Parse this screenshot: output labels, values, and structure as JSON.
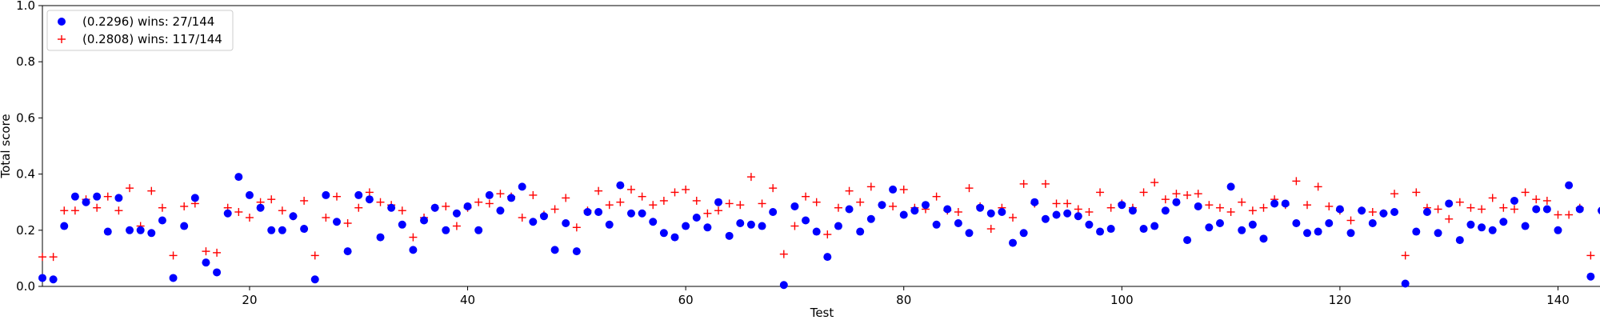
{
  "chart_data": {
    "type": "scatter",
    "xlabel": "Test",
    "ylabel": "Total score",
    "xlim": [
      1,
      144
    ],
    "ylim": [
      0.0,
      1.0
    ],
    "x_ticks": [
      20,
      40,
      60,
      80,
      100,
      120,
      140
    ],
    "x_tick_labels": [
      "20",
      "40",
      "60",
      "80",
      "100",
      "120",
      "140"
    ],
    "y_ticks": [
      0.0,
      0.2,
      0.4,
      0.6,
      0.8,
      1.0
    ],
    "y_tick_labels": [
      "0.0",
      "0.2",
      "0.4",
      "0.6",
      "0.8",
      "1.0"
    ],
    "grid": false,
    "legend_position": "top-left",
    "series": [
      {
        "name": "(0.2296) wins: 27/144",
        "marker": "circle",
        "color": "#0000ff",
        "x": [
          1,
          2,
          3,
          4,
          5,
          6,
          7,
          8,
          9,
          10,
          11,
          12,
          13,
          14,
          15,
          16,
          17,
          18,
          19,
          20,
          21,
          22,
          23,
          24,
          25,
          26,
          27,
          28,
          29,
          30,
          31,
          32,
          33,
          34,
          35,
          36,
          37,
          38,
          39,
          40,
          41,
          42,
          43,
          44,
          45,
          46,
          47,
          48,
          49,
          50,
          51,
          52,
          53,
          54,
          55,
          56,
          57,
          58,
          59,
          60,
          61,
          62,
          63,
          64,
          65,
          66,
          67,
          68,
          69,
          70,
          71,
          72,
          73,
          74,
          75,
          76,
          77,
          78,
          79,
          80,
          81,
          82,
          83,
          84,
          85,
          86,
          87,
          88,
          89,
          90,
          91,
          92,
          93,
          94,
          95,
          96,
          97,
          98,
          99,
          100,
          101,
          102,
          103,
          104,
          105,
          106,
          107,
          108,
          109,
          110,
          111,
          112,
          113,
          114,
          115,
          116,
          117,
          118,
          119,
          120,
          121,
          122,
          123,
          124,
          125,
          126,
          127,
          128,
          129,
          130,
          131,
          132,
          133,
          134,
          135,
          136,
          137,
          138,
          139,
          140,
          141,
          142,
          143,
          144
        ],
        "y": [
          0.03,
          0.025,
          0.215,
          0.32,
          0.3,
          0.32,
          0.195,
          0.315,
          0.2,
          0.2,
          0.19,
          0.235,
          0.03,
          0.215,
          0.315,
          0.085,
          0.05,
          0.26,
          0.39,
          0.325,
          0.28,
          0.2,
          0.2,
          0.25,
          0.205,
          0.025,
          0.325,
          0.23,
          0.125,
          0.325,
          0.31,
          0.175,
          0.28,
          0.22,
          0.13,
          0.235,
          0.28,
          0.2,
          0.26,
          0.285,
          0.2,
          0.325,
          0.27,
          0.315,
          0.355,
          0.23,
          0.25,
          0.13,
          0.225,
          0.125,
          0.265,
          0.265,
          0.22,
          0.36,
          0.26,
          0.26,
          0.23,
          0.19,
          0.175,
          0.215,
          0.245,
          0.21,
          0.3,
          0.18,
          0.225,
          0.22,
          0.215,
          0.265,
          0.005,
          0.285,
          0.235,
          0.195,
          0.105,
          0.215,
          0.275,
          0.195,
          0.24,
          0.29,
          0.345,
          0.255,
          0.27,
          0.29,
          0.22,
          0.275,
          0.225,
          0.19,
          0.28,
          0.26,
          0.265,
          0.155,
          0.19,
          0.3,
          0.24,
          0.255,
          0.26,
          0.25,
          0.22,
          0.195,
          0.205,
          0.29,
          0.27,
          0.205,
          0.215,
          0.27,
          0.3,
          0.165,
          0.285,
          0.21,
          0.225,
          0.355,
          0.2,
          0.22,
          0.17,
          0.295,
          0.295,
          0.225,
          0.19,
          0.195,
          0.225,
          0.275,
          0.19,
          0.27,
          0.225,
          0.26,
          0.265,
          0.01,
          0.195,
          0.265,
          0.19,
          0.295,
          0.165,
          0.22,
          0.21,
          0.2,
          0.23,
          0.305,
          0.215,
          0.275,
          0.275,
          0.2,
          0.36,
          0.275,
          0.035,
          0.27
        ]
      },
      {
        "name": "(0.2808) wins: 117/144",
        "marker": "plus",
        "color": "#ff0000",
        "x": [
          1,
          2,
          3,
          4,
          5,
          6,
          7,
          8,
          9,
          10,
          11,
          12,
          13,
          14,
          15,
          16,
          17,
          18,
          19,
          20,
          21,
          22,
          23,
          24,
          25,
          26,
          27,
          28,
          29,
          30,
          31,
          32,
          33,
          34,
          35,
          36,
          37,
          38,
          39,
          40,
          41,
          42,
          43,
          44,
          45,
          46,
          47,
          48,
          49,
          50,
          51,
          52,
          53,
          54,
          55,
          56,
          57,
          58,
          59,
          60,
          61,
          62,
          63,
          64,
          65,
          66,
          67,
          68,
          69,
          70,
          71,
          72,
          73,
          74,
          75,
          76,
          77,
          78,
          79,
          80,
          81,
          82,
          83,
          84,
          85,
          86,
          87,
          88,
          89,
          90,
          91,
          92,
          93,
          94,
          95,
          96,
          97,
          98,
          99,
          100,
          101,
          102,
          103,
          104,
          105,
          106,
          107,
          108,
          109,
          110,
          111,
          112,
          113,
          114,
          115,
          116,
          117,
          118,
          119,
          120,
          121,
          122,
          123,
          124,
          125,
          126,
          127,
          128,
          129,
          130,
          131,
          132,
          133,
          134,
          135,
          136,
          137,
          138,
          139,
          140,
          141,
          142,
          143,
          144
        ],
        "y": [
          0.105,
          0.105,
          0.27,
          0.27,
          0.31,
          0.28,
          0.32,
          0.27,
          0.35,
          0.215,
          0.34,
          0.28,
          0.11,
          0.285,
          0.295,
          0.125,
          0.12,
          0.28,
          0.265,
          0.245,
          0.3,
          0.31,
          0.27,
          0.25,
          0.305,
          0.11,
          0.245,
          0.32,
          0.225,
          0.28,
          0.335,
          0.3,
          0.29,
          0.27,
          0.175,
          0.245,
          0.28,
          0.285,
          0.215,
          0.28,
          0.3,
          0.295,
          0.33,
          0.32,
          0.245,
          0.325,
          0.255,
          0.275,
          0.315,
          0.21,
          0.27,
          0.34,
          0.29,
          0.3,
          0.345,
          0.32,
          0.29,
          0.305,
          0.335,
          0.345,
          0.305,
          0.26,
          0.27,
          0.295,
          0.29,
          0.39,
          0.295,
          0.35,
          0.115,
          0.215,
          0.32,
          0.3,
          0.185,
          0.28,
          0.34,
          0.3,
          0.355,
          0.29,
          0.285,
          0.345,
          0.28,
          0.275,
          0.32,
          0.27,
          0.265,
          0.35,
          0.285,
          0.205,
          0.28,
          0.245,
          0.365,
          0.295,
          0.365,
          0.295,
          0.295,
          0.275,
          0.265,
          0.335,
          0.28,
          0.295,
          0.28,
          0.335,
          0.37,
          0.31,
          0.33,
          0.325,
          0.33,
          0.29,
          0.28,
          0.265,
          0.3,
          0.27,
          0.28,
          0.31,
          0.29,
          0.375,
          0.29,
          0.355,
          0.285,
          0.27,
          0.235,
          0.27,
          0.265,
          0.26,
          0.33,
          0.11,
          0.335,
          0.28,
          0.275,
          0.24,
          0.3,
          0.28,
          0.275,
          0.315,
          0.28,
          0.275,
          0.335,
          0.31,
          0.305,
          0.255,
          0.255,
          0.28,
          0.11,
          0.27
        ]
      }
    ]
  }
}
